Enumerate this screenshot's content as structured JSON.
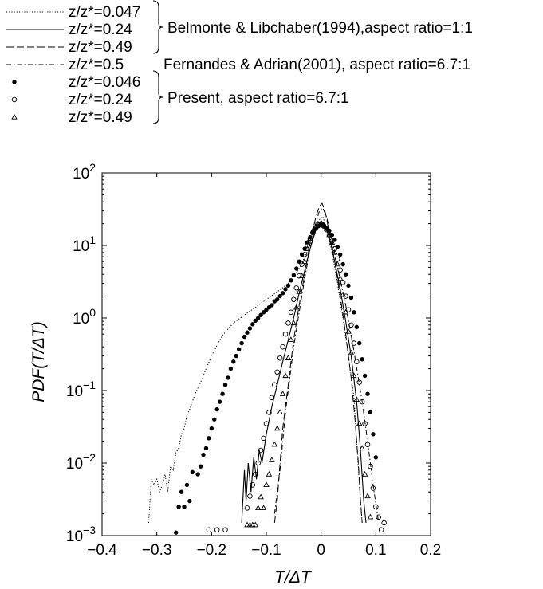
{
  "chart_data": {
    "type": "line",
    "scale": {
      "y": "log"
    },
    "xlim": [
      -0.4,
      0.2
    ],
    "ylim": [
      0.001,
      100
    ],
    "x_ticks": [
      "−0.4",
      "−0.3",
      "−0.2",
      "−0.1",
      "0",
      "0.1",
      "0.2"
    ],
    "y_ticks": [
      {
        "base": "10",
        "exp": "−3"
      },
      {
        "base": "10",
        "exp": "−2"
      },
      {
        "base": "10",
        "exp": "−1"
      },
      {
        "base": "10",
        "exp": "0"
      },
      {
        "base": "10",
        "exp": "1"
      },
      {
        "base": "10",
        "exp": "2"
      }
    ],
    "xlabel": "T/ΔT",
    "ylabel": "PDF(T/ΔT)",
    "grid": false,
    "legend_placement": "above",
    "legend_groups": [
      {
        "label": "Belmonte & Libchaber(1994),aspect ratio=1:1",
        "entries": [
          0,
          1,
          2
        ]
      },
      {
        "label": "Fernandes & Adrian(2001), aspect ratio=6.7:1",
        "entries": [
          3
        ]
      },
      {
        "label": "Present, aspect ratio=6.7:1",
        "entries": [
          4,
          5,
          6
        ]
      }
    ],
    "series": [
      {
        "name": "z/z*=0.047",
        "style": "dotted",
        "points": [
          [
            -0.315,
            0.0015
          ],
          [
            -0.31,
            0.006
          ],
          [
            -0.305,
            0.005
          ],
          [
            -0.3,
            0.006
          ],
          [
            -0.295,
            0.004
          ],
          [
            -0.29,
            0.005
          ],
          [
            -0.285,
            0.007
          ],
          [
            -0.28,
            0.004
          ],
          [
            -0.275,
            0.009
          ],
          [
            -0.27,
            0.008
          ],
          [
            -0.265,
            0.014
          ],
          [
            -0.26,
            0.016
          ],
          [
            -0.255,
            0.025
          ],
          [
            -0.25,
            0.03
          ],
          [
            -0.245,
            0.045
          ],
          [
            -0.24,
            0.055
          ],
          [
            -0.23,
            0.09
          ],
          [
            -0.22,
            0.13
          ],
          [
            -0.21,
            0.2
          ],
          [
            -0.2,
            0.3
          ],
          [
            -0.19,
            0.42
          ],
          [
            -0.18,
            0.58
          ],
          [
            -0.16,
            0.85
          ],
          [
            -0.14,
            1.1
          ],
          [
            -0.12,
            1.4
          ],
          [
            -0.1,
            1.8
          ],
          [
            -0.08,
            2.3
          ],
          [
            -0.06,
            3.0
          ],
          [
            -0.04,
            4.8
          ],
          [
            -0.02,
            10
          ],
          [
            -0.005,
            22
          ],
          [
            0.003,
            25
          ],
          [
            0.01,
            18
          ],
          [
            0.02,
            8
          ],
          [
            0.03,
            3
          ],
          [
            0.04,
            1
          ],
          [
            0.05,
            0.3
          ],
          [
            0.06,
            0.08
          ],
          [
            0.065,
            0.02
          ],
          [
            0.07,
            0.005
          ],
          [
            0.075,
            0.0015
          ]
        ]
      },
      {
        "name": "z/z*=0.24",
        "style": "solid",
        "points": [
          [
            -0.145,
            0.0015
          ],
          [
            -0.14,
            0.008
          ],
          [
            -0.137,
            0.003
          ],
          [
            -0.133,
            0.01
          ],
          [
            -0.128,
            0.004
          ],
          [
            -0.123,
            0.012
          ],
          [
            -0.118,
            0.006
          ],
          [
            -0.113,
            0.015
          ],
          [
            -0.108,
            0.01
          ],
          [
            -0.1,
            0.025
          ],
          [
            -0.09,
            0.06
          ],
          [
            -0.08,
            0.12
          ],
          [
            -0.07,
            0.25
          ],
          [
            -0.06,
            0.5
          ],
          [
            -0.05,
            1.0
          ],
          [
            -0.04,
            2.2
          ],
          [
            -0.03,
            4.5
          ],
          [
            -0.02,
            9
          ],
          [
            -0.01,
            16
          ],
          [
            0.0,
            22
          ],
          [
            0.005,
            20
          ],
          [
            0.015,
            13
          ],
          [
            0.025,
            6
          ],
          [
            0.035,
            2.5
          ],
          [
            0.045,
            0.9
          ],
          [
            0.055,
            0.3
          ],
          [
            0.065,
            0.07
          ],
          [
            0.072,
            0.015
          ],
          [
            0.078,
            0.003
          ],
          [
            0.082,
            0.0015
          ]
        ]
      },
      {
        "name": "z/z*=0.49",
        "style": "dashed",
        "points": [
          [
            -0.085,
            0.0015
          ],
          [
            -0.08,
            0.003
          ],
          [
            -0.075,
            0.01
          ],
          [
            -0.07,
            0.03
          ],
          [
            -0.065,
            0.06
          ],
          [
            -0.06,
            0.12
          ],
          [
            -0.055,
            0.25
          ],
          [
            -0.05,
            0.5
          ],
          [
            -0.04,
            1.5
          ],
          [
            -0.03,
            4
          ],
          [
            -0.02,
            11
          ],
          [
            -0.01,
            24
          ],
          [
            -0.003,
            35
          ],
          [
            0.002,
            38
          ],
          [
            0.008,
            28
          ],
          [
            0.015,
            15
          ],
          [
            0.025,
            6
          ],
          [
            0.035,
            2
          ],
          [
            0.045,
            0.6
          ],
          [
            0.055,
            0.15
          ],
          [
            0.062,
            0.04
          ],
          [
            0.068,
            0.01
          ],
          [
            0.072,
            0.003
          ],
          [
            0.075,
            0.0015
          ]
        ]
      },
      {
        "name": "z/z*=0.5",
        "style": "dashdot",
        "points": [
          [
            -0.085,
            0.002
          ],
          [
            -0.08,
            0.004
          ],
          [
            -0.075,
            0.008
          ],
          [
            -0.07,
            0.02
          ],
          [
            -0.065,
            0.05
          ],
          [
            -0.06,
            0.1
          ],
          [
            -0.055,
            0.2
          ],
          [
            -0.05,
            0.4
          ],
          [
            -0.04,
            1.2
          ],
          [
            -0.03,
            3.5
          ],
          [
            -0.02,
            9
          ],
          [
            -0.01,
            20
          ],
          [
            -0.003,
            30
          ],
          [
            0.003,
            33
          ],
          [
            0.01,
            25
          ],
          [
            0.02,
            12
          ],
          [
            0.03,
            5
          ],
          [
            0.045,
            1.5
          ],
          [
            0.06,
            0.35
          ],
          [
            0.075,
            0.07
          ],
          [
            0.085,
            0.02
          ],
          [
            0.095,
            0.005
          ],
          [
            0.105,
            0.0015
          ]
        ]
      },
      {
        "name": "z/z*=0.046",
        "marker": "filled-circle",
        "points": [
          [
            -0.265,
            0.0011
          ],
          [
            -0.26,
            0.0025
          ],
          [
            -0.255,
            0.004
          ],
          [
            -0.25,
            0.0025
          ],
          [
            -0.245,
            0.005
          ],
          [
            -0.24,
            0.003
          ],
          [
            -0.235,
            0.0075
          ],
          [
            -0.225,
            0.007
          ],
          [
            -0.22,
            0.009
          ],
          [
            -0.215,
            0.013
          ],
          [
            -0.21,
            0.016
          ],
          [
            -0.205,
            0.022
          ],
          [
            -0.2,
            0.03
          ],
          [
            -0.195,
            0.04
          ],
          [
            -0.19,
            0.055
          ],
          [
            -0.185,
            0.07
          ],
          [
            -0.18,
            0.09
          ],
          [
            -0.175,
            0.12
          ],
          [
            -0.17,
            0.15
          ],
          [
            -0.165,
            0.2
          ],
          [
            -0.16,
            0.25
          ],
          [
            -0.155,
            0.3
          ],
          [
            -0.15,
            0.37
          ],
          [
            -0.145,
            0.45
          ],
          [
            -0.14,
            0.55
          ],
          [
            -0.135,
            0.63
          ],
          [
            -0.13,
            0.72
          ],
          [
            -0.125,
            0.82
          ],
          [
            -0.12,
            0.92
          ],
          [
            -0.115,
            1.0
          ],
          [
            -0.11,
            1.1
          ],
          [
            -0.105,
            1.2
          ],
          [
            -0.1,
            1.3
          ],
          [
            -0.095,
            1.4
          ],
          [
            -0.09,
            1.5
          ],
          [
            -0.085,
            1.7
          ],
          [
            -0.08,
            1.8
          ],
          [
            -0.075,
            2.0
          ],
          [
            -0.07,
            2.2
          ],
          [
            -0.065,
            2.5
          ],
          [
            -0.06,
            2.8
          ],
          [
            -0.055,
            3.3
          ],
          [
            -0.05,
            3.9
          ],
          [
            -0.045,
            4.8
          ],
          [
            -0.04,
            6
          ],
          [
            -0.035,
            7.5
          ],
          [
            -0.03,
            9
          ],
          [
            -0.025,
            11
          ],
          [
            -0.02,
            13
          ],
          [
            -0.015,
            15
          ],
          [
            -0.01,
            17
          ],
          [
            -0.005,
            18.5
          ],
          [
            0.0,
            19
          ],
          [
            0.005,
            18.5
          ],
          [
            0.01,
            17.5
          ],
          [
            0.015,
            16
          ],
          [
            0.02,
            14
          ],
          [
            0.025,
            12
          ],
          [
            0.03,
            9.5
          ],
          [
            0.035,
            7.5
          ],
          [
            0.04,
            5.5
          ],
          [
            0.045,
            4
          ],
          [
            0.05,
            2.8
          ],
          [
            0.055,
            1.9
          ],
          [
            0.06,
            1.2
          ],
          [
            0.065,
            0.75
          ],
          [
            0.07,
            0.45
          ],
          [
            0.075,
            0.27
          ],
          [
            0.08,
            0.16
          ],
          [
            0.085,
            0.09
          ],
          [
            0.09,
            0.05
          ],
          [
            0.095,
            0.025
          ],
          [
            0.1,
            0.012
          ]
        ]
      },
      {
        "name": "z/z*=0.24",
        "marker": "open-circle",
        "points": [
          [
            -0.205,
            0.0012
          ],
          [
            -0.19,
            0.0012
          ],
          [
            -0.175,
            0.0012
          ],
          [
            -0.135,
            0.0024
          ],
          [
            -0.13,
            0.0035
          ],
          [
            -0.125,
            0.005
          ],
          [
            -0.12,
            0.007
          ],
          [
            -0.115,
            0.01
          ],
          [
            -0.11,
            0.015
          ],
          [
            -0.105,
            0.022
          ],
          [
            -0.1,
            0.035
          ],
          [
            -0.095,
            0.05
          ],
          [
            -0.09,
            0.08
          ],
          [
            -0.085,
            0.12
          ],
          [
            -0.08,
            0.18
          ],
          [
            -0.075,
            0.28
          ],
          [
            -0.07,
            0.4
          ],
          [
            -0.065,
            0.6
          ],
          [
            -0.06,
            0.85
          ],
          [
            -0.055,
            1.2
          ],
          [
            -0.05,
            1.8
          ],
          [
            -0.045,
            2.6
          ],
          [
            -0.04,
            3.8
          ],
          [
            -0.035,
            5.5
          ],
          [
            -0.03,
            7.5
          ],
          [
            -0.025,
            10
          ],
          [
            -0.02,
            12.5
          ],
          [
            -0.015,
            15
          ],
          [
            -0.01,
            17.5
          ],
          [
            -0.005,
            19
          ],
          [
            0.0,
            19.5
          ],
          [
            0.005,
            18.5
          ],
          [
            0.01,
            16.5
          ],
          [
            0.015,
            14
          ],
          [
            0.02,
            11.5
          ],
          [
            0.025,
            9
          ],
          [
            0.03,
            6.5
          ],
          [
            0.035,
            4.6
          ],
          [
            0.04,
            3.1
          ],
          [
            0.045,
            2.0
          ],
          [
            0.05,
            1.3
          ],
          [
            0.055,
            0.8
          ],
          [
            0.06,
            0.45
          ],
          [
            0.065,
            0.25
          ],
          [
            0.07,
            0.13
          ],
          [
            0.075,
            0.07
          ],
          [
            0.08,
            0.035
          ],
          [
            0.085,
            0.018
          ],
          [
            0.09,
            0.009
          ],
          [
            0.095,
            0.0045
          ],
          [
            0.1,
            0.0025
          ],
          [
            0.105,
            0.0018
          ],
          [
            0.11,
            0.0012
          ],
          [
            0.115,
            0.0015
          ]
        ]
      },
      {
        "name": "z/z*=0.49",
        "marker": "open-triangle",
        "points": [
          [
            -0.135,
            0.0014
          ],
          [
            -0.13,
            0.0014
          ],
          [
            -0.125,
            0.0014
          ],
          [
            -0.12,
            0.0014
          ],
          [
            -0.115,
            0.0024
          ],
          [
            -0.11,
            0.0034
          ],
          [
            -0.105,
            0.0024
          ],
          [
            -0.1,
            0.005
          ],
          [
            -0.095,
            0.007
          ],
          [
            -0.09,
            0.011
          ],
          [
            -0.085,
            0.018
          ],
          [
            -0.08,
            0.03
          ],
          [
            -0.075,
            0.05
          ],
          [
            -0.07,
            0.09
          ],
          [
            -0.065,
            0.16
          ],
          [
            -0.06,
            0.28
          ],
          [
            -0.055,
            0.5
          ],
          [
            -0.05,
            0.85
          ],
          [
            -0.045,
            1.4
          ],
          [
            -0.04,
            2.3
          ],
          [
            -0.035,
            3.8
          ],
          [
            -0.03,
            6
          ],
          [
            -0.025,
            9
          ],
          [
            -0.02,
            12.5
          ],
          [
            -0.015,
            16
          ],
          [
            -0.01,
            18
          ],
          [
            -0.005,
            19.5
          ],
          [
            0.0,
            20
          ],
          [
            0.005,
            19
          ],
          [
            0.01,
            17
          ],
          [
            0.015,
            14
          ],
          [
            0.02,
            11
          ],
          [
            0.025,
            8
          ],
          [
            0.03,
            5.5
          ],
          [
            0.035,
            3.5
          ],
          [
            0.04,
            2.1
          ],
          [
            0.045,
            1.2
          ],
          [
            0.05,
            0.65
          ],
          [
            0.055,
            0.33
          ],
          [
            0.06,
            0.16
          ],
          [
            0.065,
            0.075
          ],
          [
            0.07,
            0.035
          ],
          [
            0.075,
            0.016
          ],
          [
            0.08,
            0.007
          ],
          [
            0.085,
            0.0035
          ],
          [
            0.09,
            0.0018
          ]
        ]
      }
    ]
  }
}
